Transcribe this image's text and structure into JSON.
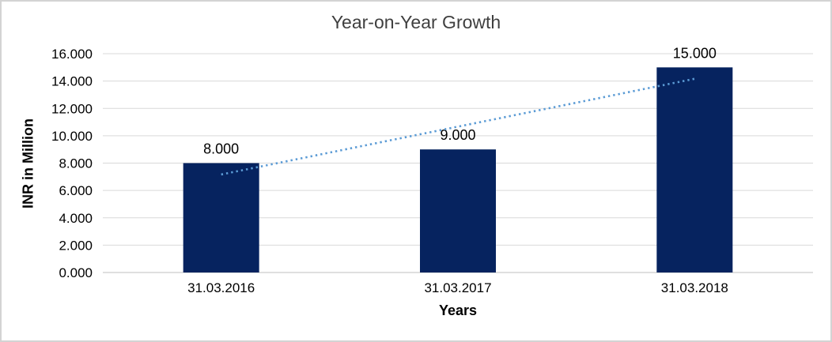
{
  "chart_data": {
    "type": "bar",
    "title": "Year-on-Year Growth",
    "xlabel": "Years",
    "ylabel": "INR in Million",
    "categories": [
      "31.03.2016",
      "31.03.2017",
      "31.03.2018"
    ],
    "values": [
      8,
      9,
      15
    ],
    "value_labels": [
      "8.000",
      "9.000",
      "15.000"
    ],
    "ylim": [
      0,
      16
    ],
    "ytick_step": 2,
    "ytick_labels": [
      "0.000",
      "2.000",
      "4.000",
      "6.000",
      "8.000",
      "10.000",
      "12.000",
      "14.000",
      "16.000"
    ],
    "grid": true,
    "legend": false,
    "trendline": {
      "type": "linear",
      "style": "dotted"
    },
    "colors": {
      "bar": "#06235f",
      "trendline": "#5b9bd5",
      "gridline": "#d9d9d9",
      "axis_line": "#bfbfbf",
      "title_text": "#3f3f3f",
      "label_text": "#000000",
      "border": "#d3d3d3"
    }
  }
}
